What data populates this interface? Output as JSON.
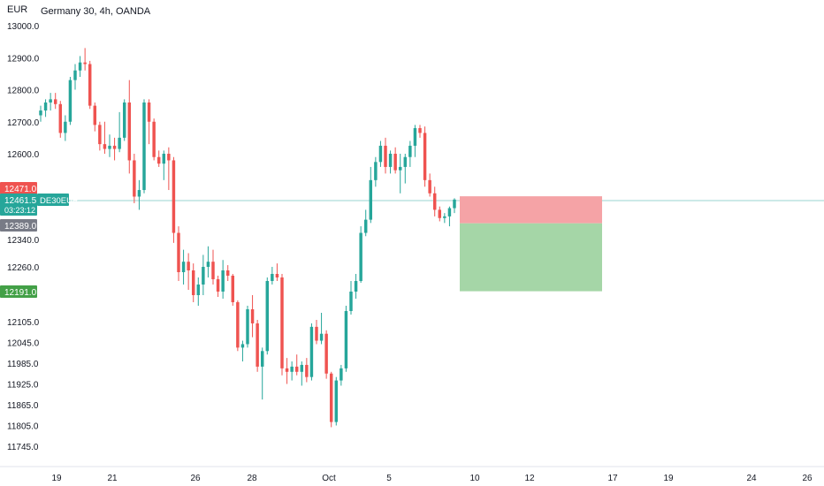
{
  "chart_data": {
    "type": "candlestick",
    "title": "Germany 30, 4h, OANDA",
    "currency_label": "EUR",
    "price_ticks": [
      13000.0,
      12900.0,
      12800.0,
      12700.0,
      12600.0,
      12340.0,
      12260.0,
      12105.0,
      12045.0,
      11985.0,
      11925.0,
      11865.0,
      11805.0,
      11745.0
    ],
    "price_tick_labels": [
      "13000.0",
      "12900.0",
      "12800.0",
      "12700.0",
      "12600.0",
      "12340.0",
      "12260.0",
      "12105.0",
      "12045.0",
      "11985.0",
      "11925.0",
      "11865.0",
      "11805.0",
      "11745.0"
    ],
    "date_labels": [
      "19",
      "21",
      "26",
      "28",
      "Oct",
      "5",
      "10",
      "12",
      "17",
      "19",
      "24",
      "26"
    ],
    "candles": [
      [
        12720,
        12750,
        12700,
        12735
      ],
      [
        12735,
        12770,
        12715,
        12760
      ],
      [
        12760,
        12790,
        12735,
        12770
      ],
      [
        12770,
        12790,
        12740,
        12755
      ],
      [
        12755,
        12765,
        12650,
        12665
      ],
      [
        12665,
        12720,
        12640,
        12700
      ],
      [
        12700,
        12840,
        12690,
        12830
      ],
      [
        12830,
        12880,
        12800,
        12860
      ],
      [
        12860,
        12905,
        12840,
        12885
      ],
      [
        12885,
        12930,
        12860,
        12880
      ],
      [
        12880,
        12890,
        12740,
        12750
      ],
      [
        12750,
        12760,
        12670,
        12690
      ],
      [
        12690,
        12700,
        12610,
        12630
      ],
      [
        12630,
        12700,
        12600,
        12615
      ],
      [
        12615,
        12660,
        12590,
        12625
      ],
      [
        12625,
        12650,
        12580,
        12615
      ],
      [
        12615,
        12730,
        12605,
        12650
      ],
      [
        12650,
        12770,
        12640,
        12760
      ],
      [
        12760,
        12830,
        12540,
        12580
      ],
      [
        12580,
        12600,
        12450,
        12470
      ],
      [
        12470,
        12520,
        12430,
        12490
      ],
      [
        12490,
        12770,
        12480,
        12760
      ],
      [
        12760,
        12770,
        12630,
        12700
      ],
      [
        12700,
        12710,
        12580,
        12590
      ],
      [
        12590,
        12610,
        12560,
        12570
      ],
      [
        12570,
        12610,
        12520,
        12600
      ],
      [
        12600,
        12620,
        12490,
        12580
      ],
      [
        12580,
        12590,
        12330,
        12360
      ],
      [
        12360,
        12380,
        12220,
        12245
      ],
      [
        12245,
        12310,
        12210,
        12275
      ],
      [
        12275,
        12300,
        12195,
        12250
      ],
      [
        12250,
        12270,
        12160,
        12180
      ],
      [
        12180,
        12230,
        12150,
        12210
      ],
      [
        12210,
        12295,
        12180,
        12260
      ],
      [
        12260,
        12320,
        12230,
        12275
      ],
      [
        12275,
        12310,
        12210,
        12225
      ],
      [
        12225,
        12235,
        12175,
        12190
      ],
      [
        12190,
        12280,
        12170,
        12250
      ],
      [
        12250,
        12265,
        12220,
        12235
      ],
      [
        12235,
        12240,
        12150,
        12160
      ],
      [
        12160,
        12165,
        12020,
        12030
      ],
      [
        12030,
        12050,
        11990,
        12040
      ],
      [
        12040,
        12150,
        12030,
        12140
      ],
      [
        12140,
        12180,
        12060,
        12100
      ],
      [
        12100,
        12110,
        11960,
        11975
      ],
      [
        11975,
        12030,
        11880,
        12020
      ],
      [
        12020,
        12230,
        12010,
        12220
      ],
      [
        12220,
        12260,
        12210,
        12240
      ],
      [
        12240,
        12270,
        12220,
        12230
      ],
      [
        12230,
        12240,
        11950,
        11970
      ],
      [
        11970,
        12000,
        11925,
        11960
      ],
      [
        11960,
        11990,
        11935,
        11975
      ],
      [
        11975,
        12010,
        11950,
        11960
      ],
      [
        11960,
        11990,
        11920,
        11980
      ],
      [
        11980,
        12000,
        11930,
        11945
      ],
      [
        11945,
        12100,
        11935,
        12090
      ],
      [
        12090,
        12110,
        12040,
        12050
      ],
      [
        12050,
        12130,
        12040,
        12070
      ],
      [
        12070,
        12080,
        11940,
        11955
      ],
      [
        11955,
        11960,
        11800,
        11815
      ],
      [
        11815,
        11945,
        11805,
        11935
      ],
      [
        11935,
        11980,
        11920,
        11970
      ],
      [
        11970,
        12150,
        11960,
        12135
      ],
      [
        12135,
        12220,
        12125,
        12190
      ],
      [
        12190,
        12240,
        12170,
        12220
      ],
      [
        12220,
        12380,
        12215,
        12360
      ],
      [
        12360,
        12430,
        12350,
        12400
      ],
      [
        12400,
        12560,
        12390,
        12520
      ],
      [
        12520,
        12590,
        12500,
        12575
      ],
      [
        12575,
        12640,
        12560,
        12625
      ],
      [
        12625,
        12650,
        12540,
        12560
      ],
      [
        12560,
        12610,
        12540,
        12600
      ],
      [
        12600,
        12620,
        12540,
        12550
      ],
      [
        12550,
        12600,
        12480,
        12560
      ],
      [
        12560,
        12600,
        12510,
        12590
      ],
      [
        12590,
        12640,
        12560,
        12625
      ],
      [
        12625,
        12690,
        12590,
        12680
      ],
      [
        12680,
        12690,
        12650,
        12665
      ],
      [
        12665,
        12685,
        12500,
        12520
      ],
      [
        12520,
        12540,
        12470,
        12480
      ],
      [
        12480,
        12500,
        12410,
        12430
      ],
      [
        12430,
        12440,
        12395,
        12405
      ],
      [
        12405,
        12420,
        12390,
        12410
      ],
      [
        12410,
        12440,
        12380,
        12435
      ],
      [
        12435,
        12465,
        12420,
        12461
      ]
    ],
    "position_tool": {
      "entry": 12389.0,
      "stop_loss": 12471.0,
      "take_profit": 12191.0
    },
    "price_labels": {
      "stop": "12471.0",
      "last": "12461.5",
      "symbol": "DE30EUR",
      "countdown": "03:23:12",
      "entry": "12389.0",
      "target": "12191.0"
    },
    "colors": {
      "up": "#26a69a",
      "down": "#ef5350",
      "stop_zone": "#f5a3a6",
      "profit_zone": "#a5d6a7",
      "stop_label": "#ef5350",
      "last_label": "#26a69a",
      "entry_label": "#787b86",
      "target_label": "#43a047"
    }
  }
}
